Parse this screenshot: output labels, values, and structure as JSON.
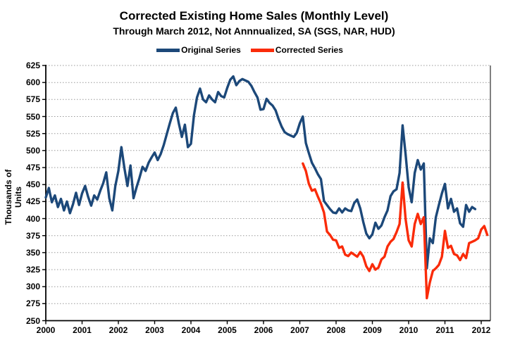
{
  "title": "Corrected Existing Home Sales (Monthly Level)",
  "subtitle": "Through March 2012, Not Annnualized, SA (SGS, NAR, HUD)",
  "y_axis_label": "Thousands of Units",
  "legend": [
    {
      "label": "Original Series",
      "color": "#1c4879"
    },
    {
      "label": "Corrected Series",
      "color": "#fa2b09"
    }
  ],
  "chart_data": {
    "type": "line",
    "title": "Corrected Existing Home Sales (Monthly Level)",
    "subtitle": "Through March 2012, Not Annnualized, SA (SGS, NAR, HUD)",
    "ylabel": "Thousands of Units",
    "xlabel": "",
    "units": "thousands of units, monthly level",
    "ylim": [
      250,
      625
    ],
    "y_tick_step": 25,
    "y_ticks": [
      625,
      600,
      575,
      550,
      525,
      500,
      475,
      450,
      425,
      400,
      375,
      350,
      325,
      300,
      275,
      250
    ],
    "x_ticks": [
      "2000",
      "2001",
      "2002",
      "2003",
      "2004",
      "2005",
      "2006",
      "2007",
      "2008",
      "2009",
      "2010",
      "2011",
      "2012"
    ],
    "x_range_years": [
      2000,
      2012.25
    ],
    "grid": "horizontal-dotted",
    "legend_position": "top",
    "series": [
      {
        "name": "Original Series",
        "color": "#1c4879",
        "start_month": "2000-01",
        "end_month": "2011-11",
        "start_index": 0,
        "values": [
          431,
          445,
          424,
          434,
          417,
          429,
          412,
          425,
          408,
          421,
          438,
          420,
          437,
          448,
          432,
          419,
          434,
          428,
          441,
          452,
          468,
          430,
          412,
          448,
          470,
          505,
          474,
          448,
          478,
          430,
          446,
          460,
          476,
          470,
          482,
          490,
          497,
          486,
          495,
          508,
          524,
          540,
          555,
          563,
          540,
          520,
          538,
          505,
          510,
          552,
          578,
          591,
          575,
          571,
          581,
          575,
          571,
          586,
          580,
          578,
          592,
          604,
          609,
          596,
          602,
          605,
          603,
          601,
          595,
          586,
          578,
          560,
          561,
          576,
          570,
          566,
          559,
          546,
          535,
          527,
          524,
          522,
          520,
          526,
          540,
          550,
          511,
          496,
          482,
          474,
          465,
          458,
          426,
          420,
          414,
          409,
          408,
          415,
          409,
          415,
          412,
          411,
          423,
          428,
          415,
          395,
          378,
          371,
          377,
          394,
          385,
          390,
          402,
          412,
          433,
          440,
          443,
          467,
          537,
          494,
          446,
          424,
          467,
          486,
          472,
          481,
          327,
          371,
          364,
          402,
          420,
          437,
          451,
          415,
          429,
          410,
          415,
          393,
          388,
          420,
          410,
          417,
          414
        ]
      },
      {
        "name": "Corrected Series",
        "color": "#fa2b09",
        "start_month": "2007-02",
        "end_month": "2012-03",
        "start_index": 85,
        "values": [
          481,
          470,
          451,
          441,
          443,
          432,
          422,
          409,
          381,
          376,
          369,
          368,
          357,
          359,
          347,
          345,
          350,
          347,
          344,
          351,
          344,
          330,
          323,
          333,
          325,
          328,
          340,
          344,
          359,
          366,
          370,
          380,
          392,
          453,
          399,
          368,
          359,
          392,
          407,
          392,
          402,
          283,
          306,
          323,
          327,
          332,
          344,
          382,
          357,
          360,
          348,
          346,
          339,
          348,
          342,
          364,
          366,
          368,
          371,
          384,
          389,
          376
        ]
      }
    ],
    "colors": {
      "grid": "#999999",
      "axis": "#000000",
      "background": "#ffffff"
    }
  }
}
